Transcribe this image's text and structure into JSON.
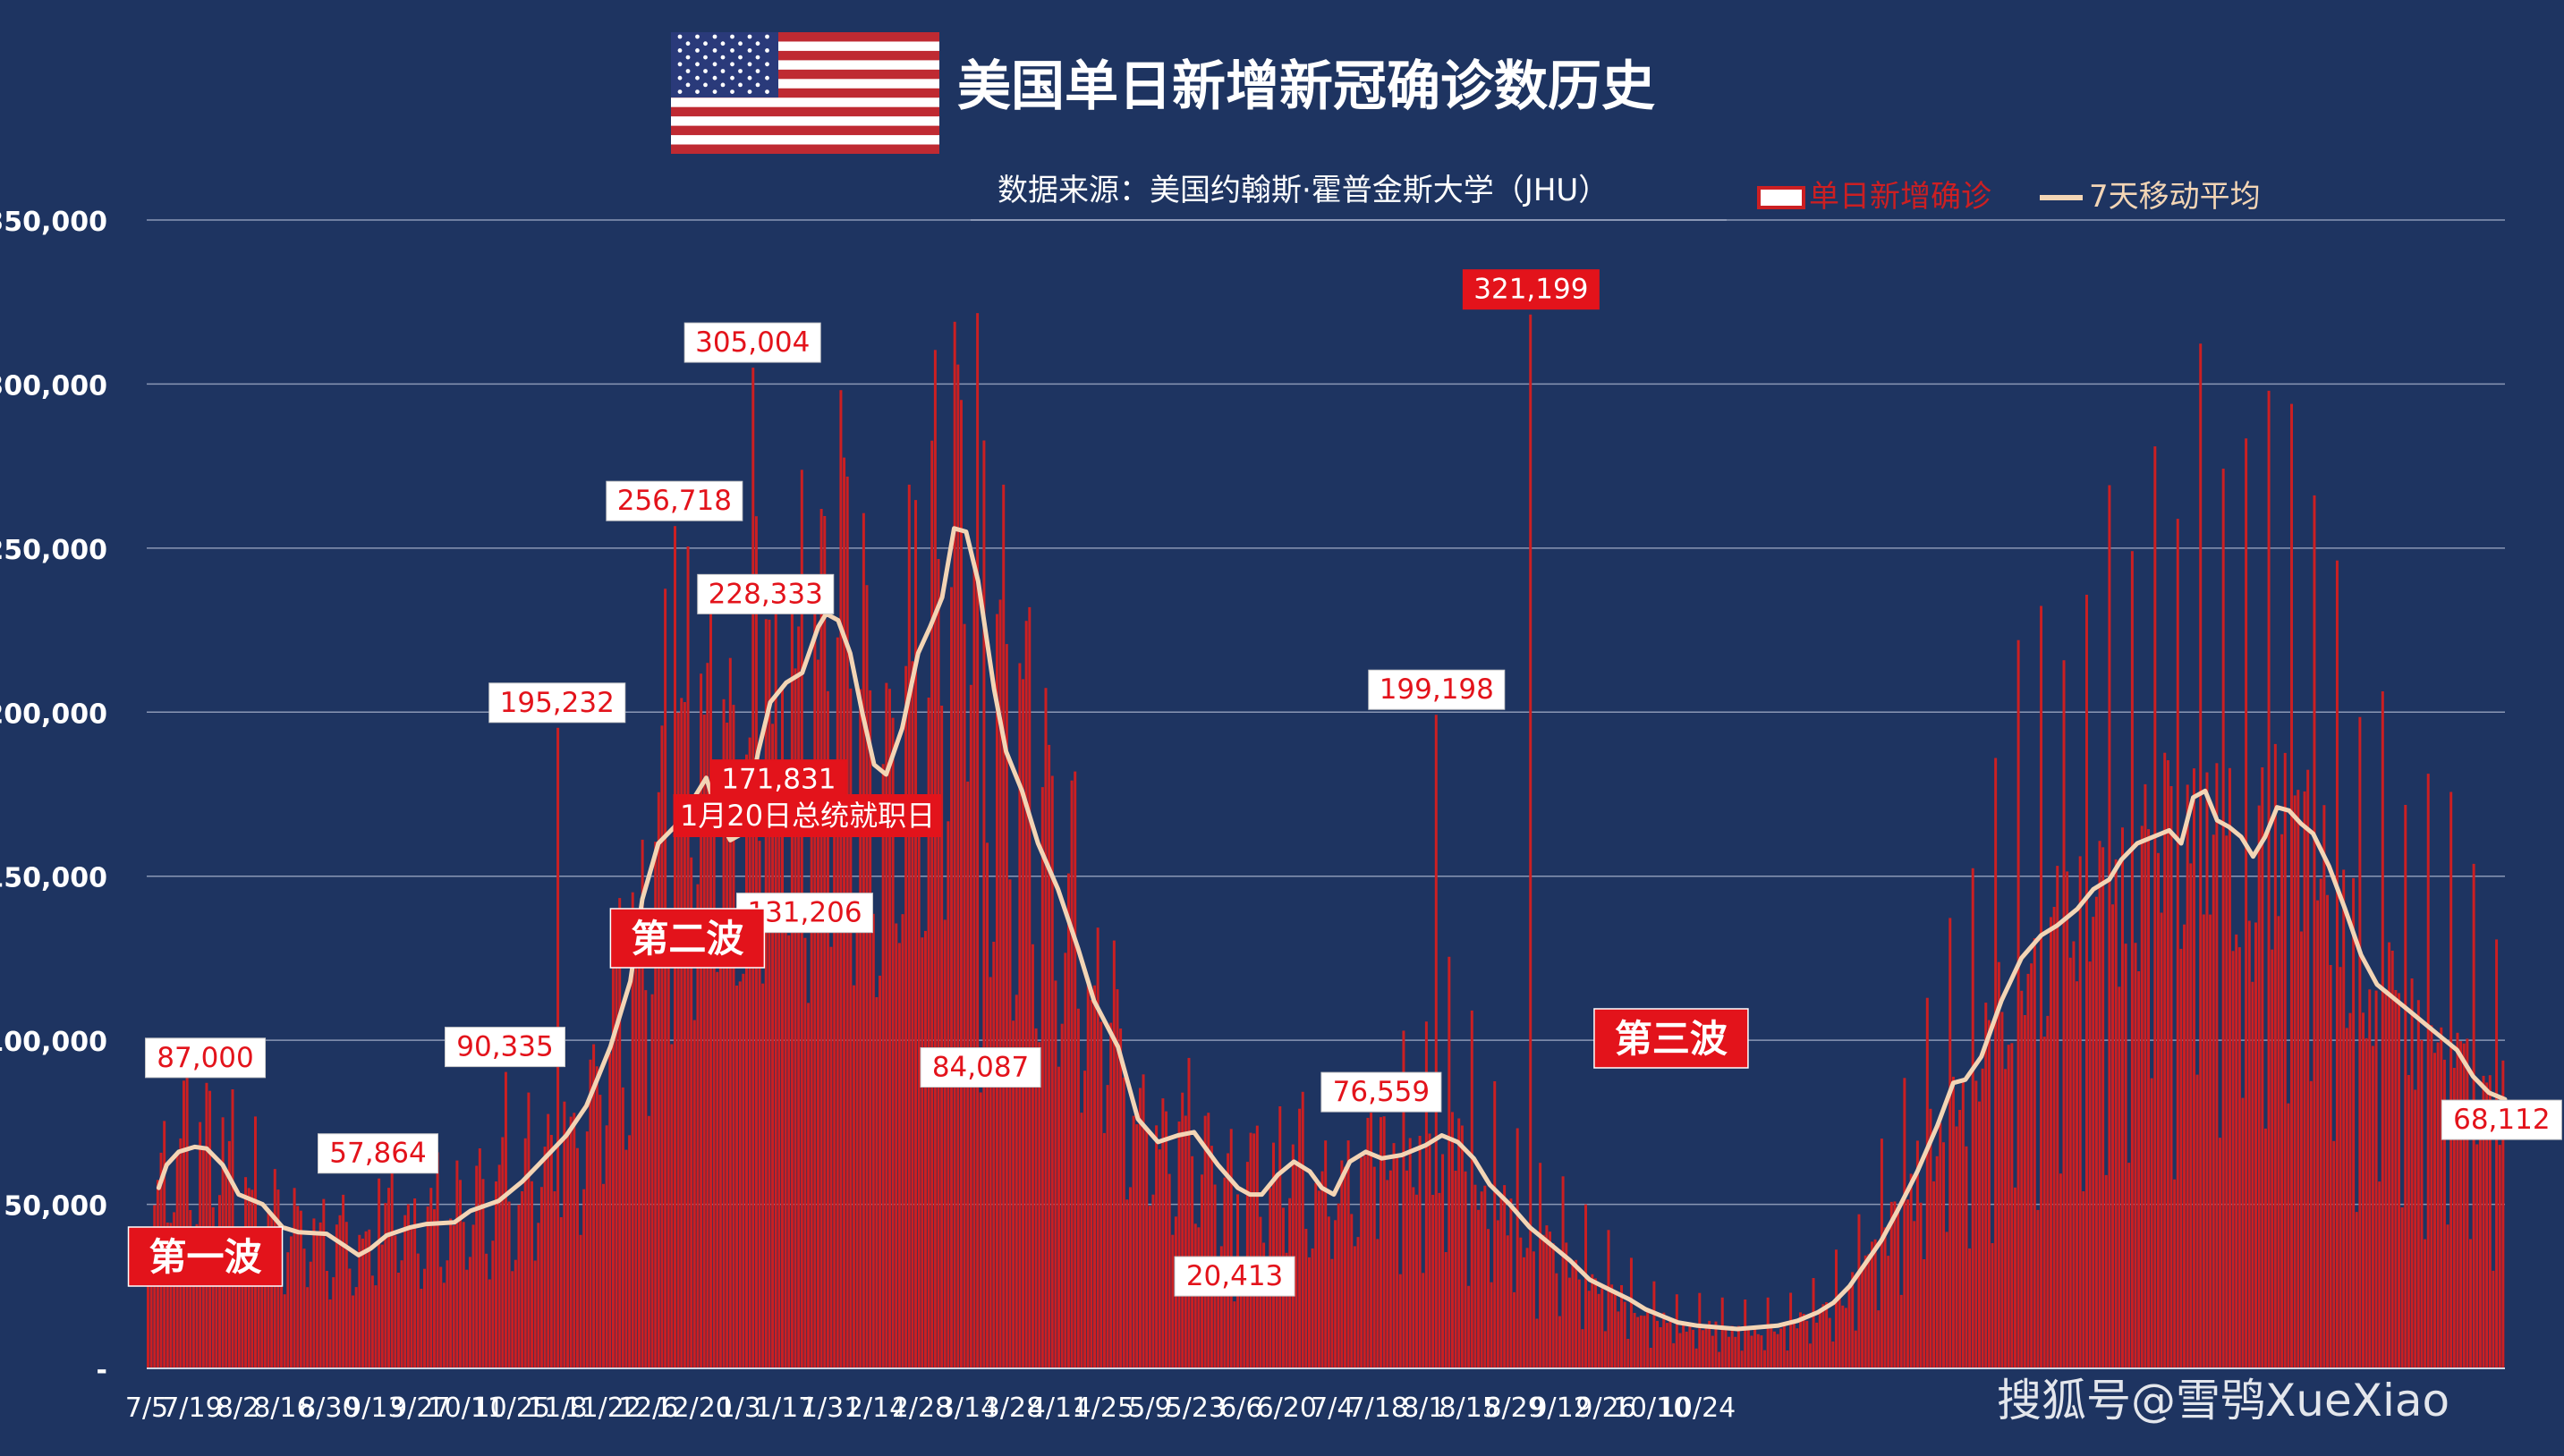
{
  "chart_data": {
    "type": "bar",
    "title": "美国单日新增新冠确诊数历史",
    "subtitle": "数据来源：美国约翰斯·霍普金斯大学（JHU）",
    "legend": {
      "position": "top-right",
      "entries": [
        {
          "label": "单日新增确诊",
          "kind": "bar",
          "color": "#cc1f22"
        },
        {
          "label": "7天移动平均",
          "kind": "line",
          "color": "#f3d5b5"
        }
      ]
    },
    "ylim": [
      0,
      350000
    ],
    "yticks": [
      0,
      50000,
      100000,
      150000,
      200000,
      250000,
      300000,
      350000
    ],
    "ytick_labels": [
      "-",
      "50,000",
      "100,000",
      "150,000",
      "200,000",
      "250,000",
      "300,000",
      "350,000"
    ],
    "x_range_days": [
      0,
      724
    ],
    "xticks": [
      {
        "day": 0,
        "label": "7/5"
      },
      {
        "day": 14,
        "label": "7/19"
      },
      {
        "day": 28,
        "label": "8/2"
      },
      {
        "day": 42,
        "label": "8/16"
      },
      {
        "day": 56,
        "label": "8/30"
      },
      {
        "day": 70,
        "label": "9/13"
      },
      {
        "day": 84,
        "label": "9/27"
      },
      {
        "day": 98,
        "label": "10/11"
      },
      {
        "day": 112,
        "label": "10/25"
      },
      {
        "day": 126,
        "label": "11/8"
      },
      {
        "day": 140,
        "label": "11/22"
      },
      {
        "day": 154,
        "label": "12/6"
      },
      {
        "day": 168,
        "label": "12/20"
      },
      {
        "day": 182,
        "label": "1/3"
      },
      {
        "day": 196,
        "label": "1/17"
      },
      {
        "day": 210,
        "label": "1/31"
      },
      {
        "day": 224,
        "label": "2/14"
      },
      {
        "day": 238,
        "label": "2/28"
      },
      {
        "day": 252,
        "label": "3/14"
      },
      {
        "day": 266,
        "label": "3/28"
      },
      {
        "day": 280,
        "label": "4/11"
      },
      {
        "day": 294,
        "label": "4/25"
      },
      {
        "day": 308,
        "label": "5/9"
      },
      {
        "day": 322,
        "label": "5/23"
      },
      {
        "day": 336,
        "label": "6/6"
      },
      {
        "day": 350,
        "label": "6/20"
      },
      {
        "day": 364,
        "label": "7/4"
      },
      {
        "day": 378,
        "label": "7/18"
      },
      {
        "day": 392,
        "label": "8/1"
      },
      {
        "day": 406,
        "label": "8/15"
      },
      {
        "day": 420,
        "label": "8/29"
      },
      {
        "day": 434,
        "label": "9/12"
      },
      {
        "day": 448,
        "label": "9/26"
      },
      {
        "day": 462,
        "label": "10/10"
      },
      {
        "day": 476,
        "label": "10/24"
      }
    ],
    "moving_average_series": {
      "name": "7天移动平均",
      "points": [
        [
          6,
          55000
        ],
        [
          10,
          62000
        ],
        [
          16,
          66000
        ],
        [
          24,
          67500
        ],
        [
          30,
          67000
        ],
        [
          38,
          62000
        ],
        [
          46,
          53000
        ],
        [
          58,
          50000
        ],
        [
          68,
          43000
        ],
        [
          76,
          41500
        ],
        [
          90,
          41000
        ],
        [
          100,
          37000
        ],
        [
          106,
          34500
        ],
        [
          112,
          36500
        ],
        [
          120,
          40500
        ],
        [
          132,
          43000
        ],
        [
          140,
          44000
        ],
        [
          154,
          44500
        ],
        [
          162,
          48000
        ],
        [
          176,
          51000
        ],
        [
          188,
          57000
        ],
        [
          196,
          62000
        ],
        [
          210,
          71000
        ],
        [
          220,
          80000
        ],
        [
          232,
          98000
        ],
        [
          242,
          118000
        ],
        [
          248,
          143000
        ],
        [
          256,
          160000
        ],
        [
          264,
          165000
        ],
        [
          272,
          172000
        ],
        [
          280,
          180000
        ],
        [
          286,
          168000
        ],
        [
          292,
          161000
        ],
        [
          298,
          163000
        ],
        [
          306,
          188000
        ],
        [
          312,
          203000
        ],
        [
          320,
          209000
        ],
        [
          328,
          212000
        ],
        [
          336,
          226000
        ],
        [
          340,
          230000
        ],
        [
          346,
          228000
        ],
        [
          352,
          218000
        ],
        [
          358,
          200000
        ],
        [
          364,
          184000
        ],
        [
          370,
          181000
        ],
        [
          378,
          195000
        ],
        [
          386,
          218000
        ],
        [
          392,
          226000
        ],
        [
          398,
          235000
        ],
        [
          404,
          256000
        ],
        [
          410,
          255000
        ],
        [
          416,
          240000
        ],
        [
          424,
          207000
        ],
        [
          430,
          188000
        ],
        [
          438,
          176000
        ],
        [
          446,
          160000
        ],
        [
          456,
          146000
        ],
        [
          466,
          128000
        ],
        [
          474,
          112000
        ],
        [
          486,
          98000
        ],
        [
          496,
          76000
        ],
        [
          506,
          69000
        ],
        [
          516,
          71000
        ],
        [
          524,
          72000
        ],
        [
          536,
          62000
        ],
        [
          546,
          55000
        ],
        [
          552,
          53000
        ],
        [
          558,
          53000
        ],
        [
          566,
          59000
        ],
        [
          574,
          63000
        ],
        [
          582,
          60000
        ],
        [
          588,
          55000
        ],
        [
          594,
          53000
        ],
        [
          602,
          63000
        ],
        [
          610,
          66000
        ],
        [
          618,
          64000
        ],
        [
          628,
          65000
        ],
        [
          640,
          68000
        ],
        [
          648,
          71000
        ],
        [
          656,
          69000
        ],
        [
          664,
          64000
        ],
        [
          672,
          56000
        ],
        [
          682,
          50000
        ],
        [
          692,
          43000
        ],
        [
          702,
          38000
        ],
        [
          712,
          33000
        ],
        [
          722,
          27000
        ],
        [
          732,
          24000
        ],
        [
          742,
          21000
        ],
        [
          750,
          18000
        ],
        [
          758,
          16000
        ],
        [
          766,
          14000
        ],
        [
          776,
          13000
        ],
        [
          786,
          12500
        ],
        [
          796,
          12000
        ],
        [
          806,
          12500
        ],
        [
          816,
          13000
        ],
        [
          826,
          14500
        ],
        [
          836,
          17000
        ],
        [
          844,
          20000
        ],
        [
          852,
          25000
        ],
        [
          860,
          32000
        ],
        [
          868,
          39000
        ],
        [
          876,
          48000
        ],
        [
          886,
          60000
        ],
        [
          896,
          74000
        ],
        [
          904,
          87000
        ],
        [
          910,
          88000
        ],
        [
          918,
          95000
        ],
        [
          928,
          112000
        ],
        [
          938,
          125000
        ],
        [
          948,
          132000
        ],
        [
          956,
          135000
        ],
        [
          966,
          140000
        ],
        [
          974,
          146000
        ],
        [
          982,
          149000
        ],
        [
          988,
          155000
        ],
        [
          996,
          160000
        ],
        [
          1004,
          162000
        ],
        [
          1012,
          164000
        ],
        [
          1018,
          160000
        ],
        [
          1024,
          174000
        ],
        [
          1030,
          176000
        ],
        [
          1036,
          167000
        ],
        [
          1042,
          165000
        ],
        [
          1048,
          162000
        ],
        [
          1054,
          156000
        ],
        [
          1060,
          162000
        ],
        [
          1066,
          171000
        ],
        [
          1072,
          170000
        ],
        [
          1078,
          166000
        ],
        [
          1084,
          163000
        ],
        [
          1092,
          153000
        ],
        [
          1100,
          140000
        ],
        [
          1108,
          126000
        ],
        [
          1116,
          117000
        ],
        [
          1124,
          113000
        ],
        [
          1132,
          109000
        ],
        [
          1140,
          105000
        ],
        [
          1148,
          101000
        ],
        [
          1156,
          97000
        ],
        [
          1164,
          89000
        ],
        [
          1172,
          84000
        ],
        [
          1180,
          82000
        ]
      ]
    },
    "annotations": [
      {
        "text": "87,000",
        "day": 18,
        "value": 87000,
        "style": "white"
      },
      {
        "text": "57,864",
        "day": 71,
        "value": 57864,
        "style": "white"
      },
      {
        "text": "90,335",
        "day": 110,
        "value": 90335,
        "style": "white"
      },
      {
        "text": "195,232",
        "day": 126,
        "value": 195232,
        "style": "white"
      },
      {
        "text": "256,718",
        "day": 162,
        "value": 256718,
        "style": "white"
      },
      {
        "text": "305,004",
        "day": 186,
        "value": 305004,
        "style": "white"
      },
      {
        "text": "228,333",
        "day": 190,
        "value": 228333,
        "style": "white"
      },
      {
        "text": "171,831",
        "day": 194,
        "value": 171831,
        "style": "red"
      },
      {
        "text": "131,206",
        "day": 202,
        "value": 131206,
        "style": "white"
      },
      {
        "text": "84,087",
        "day": 256,
        "value": 84087,
        "style": "white"
      },
      {
        "text": "20,413",
        "day": 334,
        "value": 20413,
        "style": "white"
      },
      {
        "text": "76,559",
        "day": 379,
        "value": 76559,
        "style": "white"
      },
      {
        "text": "199,198",
        "day": 396,
        "value": 199198,
        "style": "white"
      },
      {
        "text": "321,199",
        "day": 425,
        "value": 321199,
        "style": "red"
      },
      {
        "text": "68,112",
        "day": 723,
        "value": 68112,
        "style": "white"
      }
    ],
    "event_label": {
      "text": "1月20日总统就职日",
      "day": 199
    },
    "wave_labels": [
      {
        "text": "第一波",
        "day": 18
      },
      {
        "text": "第二波",
        "day": 166
      },
      {
        "text": "第三波",
        "day": 468
      }
    ]
  },
  "watermark": "搜狐号@雪鸮XueXiao"
}
